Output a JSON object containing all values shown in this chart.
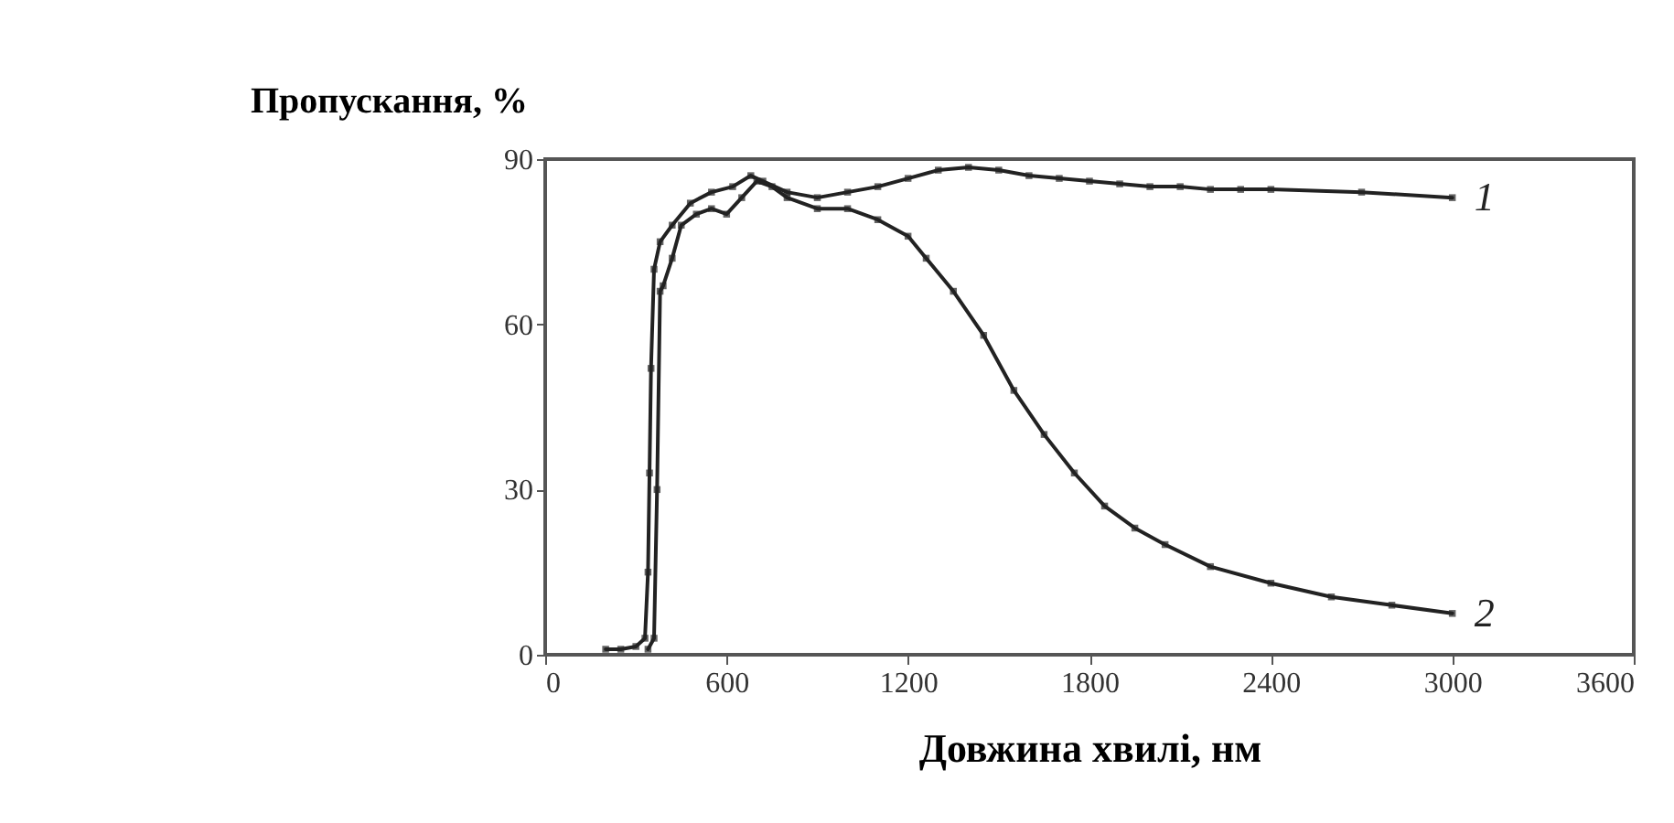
{
  "chart_data": {
    "type": "line",
    "xlabel": "Довжина хвилі, нм",
    "ylabel": "Пропускання, %",
    "xlim": [
      0,
      3600
    ],
    "xticks": [
      0,
      600,
      1200,
      1800,
      2400,
      3000,
      3600
    ],
    "ylim": [
      0,
      90
    ],
    "yticks": [
      0,
      30,
      60,
      90
    ],
    "grid": false,
    "marker": "square",
    "line_style": "solid",
    "series": [
      {
        "name": "1",
        "color": "#222222",
        "x": [
          200,
          250,
          300,
          330,
          340,
          345,
          350,
          360,
          380,
          420,
          480,
          550,
          620,
          680,
          720,
          800,
          900,
          1000,
          1100,
          1200,
          1300,
          1400,
          1500,
          1600,
          1700,
          1800,
          1900,
          2000,
          2100,
          2200,
          2300,
          2400,
          2700,
          3000
        ],
        "values": [
          1,
          1,
          1.5,
          3,
          15,
          33,
          52,
          70,
          75,
          78,
          82,
          84,
          85,
          87,
          86,
          84,
          83,
          84,
          85,
          86.5,
          88,
          88.5,
          88,
          87,
          86.5,
          86,
          85.5,
          85,
          85,
          84.5,
          84.5,
          84.5,
          84,
          83
        ]
      },
      {
        "name": "2",
        "color": "#222222",
        "x": [
          340,
          360,
          370,
          380,
          390,
          420,
          450,
          500,
          550,
          600,
          650,
          700,
          750,
          800,
          900,
          1000,
          1100,
          1200,
          1260,
          1350,
          1450,
          1550,
          1650,
          1750,
          1850,
          1950,
          2050,
          2200,
          2400,
          2600,
          2800,
          3000
        ],
        "values": [
          1,
          3,
          30,
          66,
          67,
          72,
          78,
          80,
          81,
          80,
          83,
          86,
          85,
          83,
          81,
          81,
          79,
          76,
          72,
          66,
          58,
          48,
          40,
          33,
          27,
          23,
          20,
          16,
          13,
          10.5,
          9,
          7.5
        ]
      }
    ]
  }
}
